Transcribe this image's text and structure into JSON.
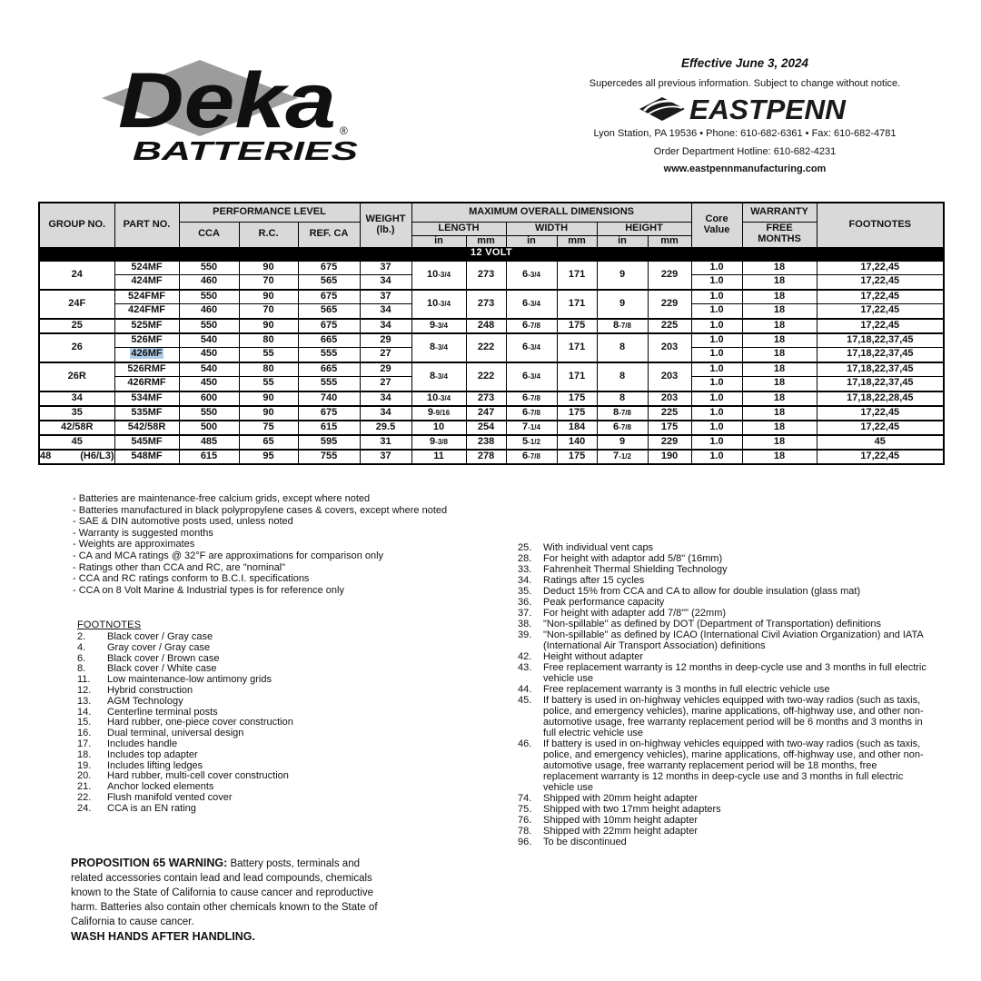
{
  "colors": {
    "header_bg": "#d9d9d9",
    "highlight": "#aecbe8"
  },
  "brand": {
    "name": "Deka",
    "reg": "®",
    "sub": "BATTERIES"
  },
  "header": {
    "effective": "Effective June 3, 2024",
    "supercedes": "Supercedes all previous information. Subject to change without notice.",
    "logo_text": "EASTPENN",
    "address": "Lyon Station, PA 19536 • Phone: 610-682-6361 • Fax: 610-682-4781",
    "hotline": "Order Department Hotline: 610-682-4231",
    "website": "www.eastpennmanufacturing.com"
  },
  "table": {
    "col_headers": {
      "group": "GROUP NO.",
      "part": "PART NO.",
      "perf": "PERFORMANCE LEVEL",
      "cca": "CCA",
      "rc": "R.C.",
      "refca": "REF. CA",
      "weight1": "WEIGHT",
      "weight2": "(lb.)",
      "dims": "MAXIMUM OVERALL DIMENSIONS",
      "length": "LENGTH",
      "width": "WIDTH",
      "height": "HEIGHT",
      "in": "in",
      "mm": "mm",
      "core1": "Core",
      "core2": "Value",
      "warranty": "WARRANTY",
      "free": "FREE",
      "months": "MONTHS",
      "footnotes": "FOOTNOTES"
    },
    "section": "12 VOLT",
    "groups": [
      {
        "group": "24",
        "dims": {
          "lin": "10-3/4",
          "lmm": "273",
          "win": "6-3/4",
          "wmm": "171",
          "hin": "9",
          "hmm": "229"
        },
        "rows": [
          {
            "part": "524MF",
            "cca": "550",
            "rc": "90",
            "refca": "675",
            "wt": "37",
            "core": "1.0",
            "months": "18",
            "fn": "17,22,45"
          },
          {
            "part": "424MF",
            "cca": "460",
            "rc": "70",
            "refca": "565",
            "wt": "34",
            "core": "1.0",
            "months": "18",
            "fn": "17,22,45"
          }
        ]
      },
      {
        "group": "24F",
        "dims": {
          "lin": "10-3/4",
          "lmm": "273",
          "win": "6-3/4",
          "wmm": "171",
          "hin": "9",
          "hmm": "229"
        },
        "rows": [
          {
            "part": "524FMF",
            "cca": "550",
            "rc": "90",
            "refca": "675",
            "wt": "37",
            "core": "1.0",
            "months": "18",
            "fn": "17,22,45"
          },
          {
            "part": "424FMF",
            "cca": "460",
            "rc": "70",
            "refca": "565",
            "wt": "34",
            "core": "1.0",
            "months": "18",
            "fn": "17,22,45"
          }
        ]
      },
      {
        "group": "25",
        "dims": {
          "lin": "9-3/4",
          "lmm": "248",
          "win": "6-7/8",
          "wmm": "175",
          "hin": "8-7/8",
          "hmm": "225"
        },
        "rows": [
          {
            "part": "525MF",
            "cca": "550",
            "rc": "90",
            "refca": "675",
            "wt": "34",
            "core": "1.0",
            "months": "18",
            "fn": "17,22,45"
          }
        ]
      },
      {
        "group": "26",
        "dims": {
          "lin": "8-3/4",
          "lmm": "222",
          "win": "6-3/4",
          "wmm": "171",
          "hin": "8",
          "hmm": "203"
        },
        "rows": [
          {
            "part": "526MF",
            "cca": "540",
            "rc": "80",
            "refca": "665",
            "wt": "29",
            "core": "1.0",
            "months": "18",
            "fn": "17,18,22,37,45"
          },
          {
            "part": "426MF",
            "highlight": true,
            "cca": "450",
            "rc": "55",
            "refca": "555",
            "wt": "27",
            "core": "1.0",
            "months": "18",
            "fn": "17,18,22,37,45"
          }
        ]
      },
      {
        "group": "26R",
        "dims": {
          "lin": "8-3/4",
          "lmm": "222",
          "win": "6-3/4",
          "wmm": "171",
          "hin": "8",
          "hmm": "203"
        },
        "rows": [
          {
            "part": "526RMF",
            "cca": "540",
            "rc": "80",
            "refca": "665",
            "wt": "29",
            "core": "1.0",
            "months": "18",
            "fn": "17,18,22,37,45"
          },
          {
            "part": "426RMF",
            "cca": "450",
            "rc": "55",
            "refca": "555",
            "wt": "27",
            "core": "1.0",
            "months": "18",
            "fn": "17,18,22,37,45"
          }
        ]
      },
      {
        "group": "34",
        "dims": {
          "lin": "10-3/4",
          "lmm": "273",
          "win": "6-7/8",
          "wmm": "175",
          "hin": "8",
          "hmm": "203"
        },
        "rows": [
          {
            "part": "534MF",
            "cca": "600",
            "rc": "90",
            "refca": "740",
            "wt": "34",
            "core": "1.0",
            "months": "18",
            "fn": "17,18,22,28,45"
          }
        ]
      },
      {
        "group": "35",
        "dims": {
          "lin": "9-9/16",
          "lmm": "247",
          "win": "6-7/8",
          "wmm": "175",
          "hin": "8-7/8",
          "hmm": "225"
        },
        "rows": [
          {
            "part": "535MF",
            "cca": "550",
            "rc": "90",
            "refca": "675",
            "wt": "34",
            "core": "1.0",
            "months": "18",
            "fn": "17,22,45"
          }
        ]
      },
      {
        "group": "42/58R",
        "dims": {
          "lin": "10",
          "lmm": "254",
          "win": "7-1/4",
          "wmm": "184",
          "hin": "6-7/8",
          "hmm": "175"
        },
        "rows": [
          {
            "part": "542/58R",
            "cca": "500",
            "rc": "75",
            "refca": "615",
            "wt": "29.5",
            "core": "1.0",
            "months": "18",
            "fn": "17,22,45"
          }
        ]
      },
      {
        "group": "45",
        "dims": {
          "lin": "9-3/8",
          "lmm": "238",
          "win": "5-1/2",
          "wmm": "140",
          "hin": "9",
          "hmm": "229"
        },
        "rows": [
          {
            "part": "545MF",
            "cca": "485",
            "rc": "65",
            "refca": "595",
            "wt": "31",
            "core": "1.0",
            "months": "18",
            "fn": "45"
          }
        ]
      },
      {
        "group": "48",
        "group2": "(H6/L3)",
        "dims": {
          "lin": "11",
          "lmm": "278",
          "win": "6-7/8",
          "wmm": "175",
          "hin": "7-1/2",
          "hmm": "190"
        },
        "rows": [
          {
            "part": "548MF",
            "cca": "615",
            "rc": "95",
            "refca": "755",
            "wt": "37",
            "core": "1.0",
            "months": "18",
            "fn": "17,22,45"
          }
        ]
      }
    ]
  },
  "notes": {
    "general": [
      "- Batteries are maintenance-free calcium grids, except where noted",
      "- Batteries manufactured in black polypropylene cases & covers, except where noted",
      "- SAE & DIN automotive posts used, unless noted",
      "- Warranty is suggested months",
      "- Weights are approximates",
      "- CA and MCA ratings @ 32°F are approximations for comparison only",
      "- Ratings other than CCA and RC, are \"nominal\"",
      "- CCA and RC ratings conform to B.C.I. specifications",
      "- CCA on 8 Volt Marine & Industrial types is for reference only"
    ],
    "footnotes_title": "FOOTNOTES",
    "left": [
      {
        "n": "2.",
        "t": "Black cover / Gray case"
      },
      {
        "n": "4.",
        "t": "Gray cover / Gray case"
      },
      {
        "n": "6.",
        "t": "Black cover / Brown case"
      },
      {
        "n": "8.",
        "t": "Black cover / White case"
      },
      {
        "n": "11.",
        "t": "Low maintenance-low antimony grids"
      },
      {
        "n": "12.",
        "t": "Hybrid construction"
      },
      {
        "n": "13.",
        "t": "AGM Technology"
      },
      {
        "n": "14.",
        "t": "Centerline terminal posts"
      },
      {
        "n": "15.",
        "t": "Hard rubber, one-piece cover construction"
      },
      {
        "n": "16.",
        "t": "Dual terminal, universal design"
      },
      {
        "n": "17.",
        "t": "Includes handle"
      },
      {
        "n": "18.",
        "t": "Includes top adapter"
      },
      {
        "n": "19.",
        "t": "Includes lifting ledges"
      },
      {
        "n": "20.",
        "t": "Hard rubber, multi-cell cover construction"
      },
      {
        "n": "21.",
        "t": "Anchor locked elements"
      },
      {
        "n": "22.",
        "t": "Flush manifold vented cover"
      },
      {
        "n": "24.",
        "t": "CCA is an EN rating"
      }
    ],
    "right": [
      {
        "n": "25.",
        "t": "With individual vent caps"
      },
      {
        "n": "28.",
        "t": "For height with adaptor add 5/8\" (16mm)"
      },
      {
        "n": "33.",
        "t": "Fahrenheit Thermal Shielding Technology"
      },
      {
        "n": "34.",
        "t": "Ratings after 15 cycles"
      },
      {
        "n": "35.",
        "t": "Deduct 15% from CCA and CA to allow for double insulation (glass mat)"
      },
      {
        "n": "36.",
        "t": "Peak performance capacity"
      },
      {
        "n": "37.",
        "t": "For height with adapter add 7/8\"\" (22mm)"
      },
      {
        "n": "38.",
        "t": "\"Non-spillable\" as defined by DOT (Department of Transportation) definitions"
      },
      {
        "n": "39.",
        "t": "\"Non-spillable\" as defined by ICAO (International Civil Aviation Organization) and IATA (International Air Transport Association) definitions"
      },
      {
        "n": "42.",
        "t": "Height without adapter"
      },
      {
        "n": "43.",
        "t": "Free replacement warranty is 12 months in deep-cycle use and 3 months in full electric vehicle use"
      },
      {
        "n": "44.",
        "t": "Free replacement warranty is 3 months in full electric vehicle use"
      },
      {
        "n": "45.",
        "t": "If battery is used in on-highway vehicles equipped with two-way radios (such as taxis, police, and emergency vehicles), marine applications, off-highway use, and other non-automotive usage, free warranty replacement period will be 6 months and 3 months in full electric vehicle use"
      },
      {
        "n": "46.",
        "t": "If battery is used in on-highway vehicles equipped with two-way radios (such as taxis, police, and emergency vehicles), marine applications, off-highway use, and other non-automotive usage, free warranty replacement period will be 18 months, free replacement warranty is 12 months in deep-cycle use and 3 months in full electric vehicle use"
      },
      {
        "n": "74.",
        "t": "Shipped with 20mm height adapter"
      },
      {
        "n": "75.",
        "t": "Shipped with two 17mm height adapters"
      },
      {
        "n": "76.",
        "t": "Shipped with 10mm height adapter"
      },
      {
        "n": "78.",
        "t": "Shipped with 22mm height adapter"
      },
      {
        "n": "96.",
        "t": "To be discontinued"
      }
    ]
  },
  "warning": {
    "title": "PROPOSITION 65 WARNING:",
    "body": " Battery posts, terminals and related accessories contain lead and lead compounds, chemicals known to the State of California to cause cancer and reproductive harm. Batteries also contain other chemicals known to the State of California to cause cancer.",
    "final": "WASH HANDS AFTER HANDLING."
  }
}
